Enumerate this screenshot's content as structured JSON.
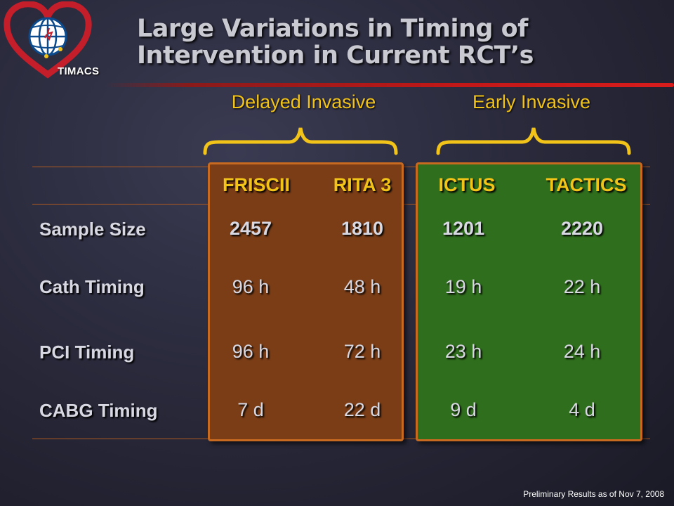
{
  "logo": {
    "name": "TIMACS",
    "icon": "heart-globe-icon"
  },
  "title": {
    "line1": "Large Variations in Timing of",
    "line2": "Intervention in Current RCT’s"
  },
  "groups": {
    "delayed": "Delayed Invasive",
    "early": "Early Invasive"
  },
  "columns": [
    "FRISCII",
    "RITA 3",
    "ICTUS",
    "TACTICS"
  ],
  "rows": [
    {
      "label": "Sample Size",
      "values": [
        "2457",
        "1810",
        "1201",
        "2220"
      ]
    },
    {
      "label": "Cath Timing",
      "values": [
        "96 h",
        "48 h",
        "19 h",
        "22 h"
      ]
    },
    {
      "label": "PCI Timing",
      "values": [
        "96 h",
        "72 h",
        "23 h",
        "24 h"
      ]
    },
    {
      "label": "CABG Timing",
      "values": [
        "7 d",
        "22 d",
        "9 d",
        "4 d"
      ]
    }
  ],
  "footer": "Preliminary Results as of Nov 7, 2008",
  "colors": {
    "accent": "#f2c318",
    "delayed_panel": "#7a3d16",
    "early_panel": "#2f6e1c",
    "border": "#c86a20",
    "rule": "#c01818"
  }
}
